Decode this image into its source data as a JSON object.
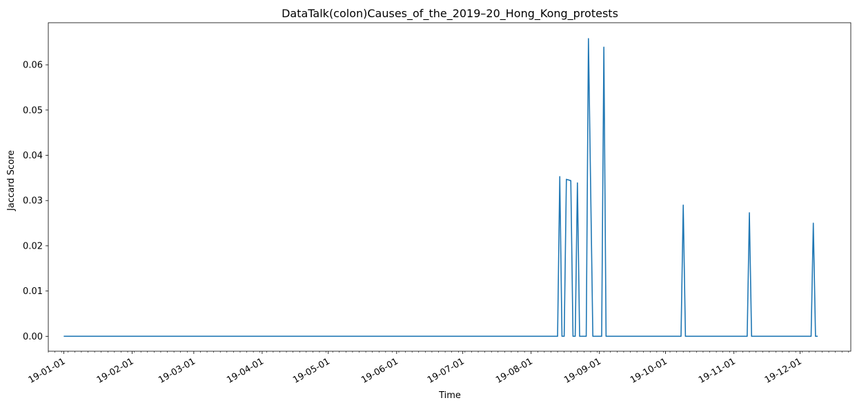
{
  "chart_data": {
    "type": "line",
    "title": "DataTalk(colon)Causes_of_the_2019–20_Hong_Kong_protests",
    "xlabel": "Time",
    "ylabel": "Jaccard Score",
    "xlim": [
      "2018-12-25",
      "2019-12-24"
    ],
    "ylim": [
      -0.0033,
      0.0693
    ],
    "yticks": [
      0.0,
      0.01,
      0.02,
      0.03,
      0.04,
      0.05,
      0.06
    ],
    "yticklabels": [
      "0.00",
      "0.01",
      "0.02",
      "0.03",
      "0.04",
      "0.05",
      "0.06"
    ],
    "xticks": [
      "2019-01-01",
      "2019-02-01",
      "2019-03-01",
      "2019-04-01",
      "2019-05-01",
      "2019-06-01",
      "2019-07-01",
      "2019-08-01",
      "2019-09-01",
      "2019-10-01",
      "2019-11-01",
      "2019-12-01"
    ],
    "xticklabels": [
      "19-01-01",
      "19-02-01",
      "19-03-01",
      "19-04-01",
      "19-05-01",
      "19-06-01",
      "19-07-01",
      "19-08-01",
      "19-09-01",
      "19-10-01",
      "19-11-01",
      "19-12-01"
    ],
    "grid": false,
    "series": [
      {
        "color": "#1f77b4",
        "points": [
          [
            "2019-01-01",
            0
          ],
          [
            "2019-08-13",
            0
          ],
          [
            "2019-08-14",
            0.0353
          ],
          [
            "2019-08-15",
            0
          ],
          [
            "2019-08-16",
            0
          ],
          [
            "2019-08-17",
            0.0347
          ],
          [
            "2019-08-19",
            0.0344
          ],
          [
            "2019-08-20",
            0
          ],
          [
            "2019-08-21",
            0
          ],
          [
            "2019-08-22",
            0.0339
          ],
          [
            "2019-08-23",
            0
          ],
          [
            "2019-08-26",
            0
          ],
          [
            "2019-08-27",
            0.0658
          ],
          [
            "2019-08-29",
            0
          ],
          [
            "2019-09-02",
            0
          ],
          [
            "2019-09-03",
            0.0639
          ],
          [
            "2019-09-04",
            0
          ],
          [
            "2019-10-08",
            0
          ],
          [
            "2019-10-09",
            0.029
          ],
          [
            "2019-10-10",
            0
          ],
          [
            "2019-11-07",
            0
          ],
          [
            "2019-11-08",
            0.0273
          ],
          [
            "2019-11-09",
            0
          ],
          [
            "2019-12-06",
            0
          ],
          [
            "2019-12-07",
            0.025
          ],
          [
            "2019-12-08",
            0
          ],
          [
            "2019-12-09",
            0
          ]
        ]
      }
    ]
  }
}
